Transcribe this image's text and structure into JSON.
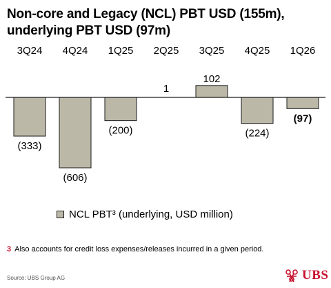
{
  "title_lines": [
    "Non-core and Legacy (NCL) PBT USD (155m),",
    "underlying PBT USD (97m)"
  ],
  "chart_data": {
    "type": "bar",
    "categories": [
      "3Q24",
      "4Q24",
      "1Q25",
      "2Q25",
      "3Q25",
      "4Q25",
      "1Q26"
    ],
    "series": [
      {
        "name": "NCL PBT³ (underlying, USD million)",
        "values": [
          -333,
          -606,
          -200,
          1,
          102,
          -224,
          -97
        ],
        "labels": [
          "(333)",
          "(606)",
          "(200)",
          "1",
          "102",
          "(224)",
          "(97)"
        ],
        "bold": [
          false,
          false,
          false,
          false,
          false,
          false,
          true
        ]
      }
    ],
    "ylim": [
      -606,
      102
    ],
    "colors": {
      "bar_fill": "#bcb8a8",
      "bar_stroke": "#1a1a1a",
      "axis": "#1a1a1a"
    }
  },
  "legend": {
    "label": "NCL PBT³ (underlying, USD million)"
  },
  "footnote": {
    "number": "3",
    "text": "Also accounts for credit loss expenses/releases incurred in a given period."
  },
  "source": "Source: UBS Group AG",
  "logo": {
    "text": "UBS",
    "color": "#c8102e"
  }
}
